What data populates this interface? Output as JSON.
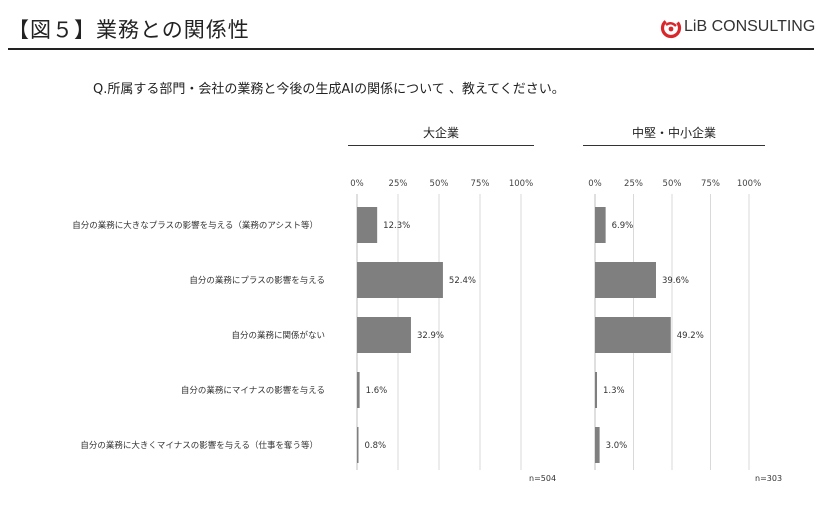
{
  "header": {
    "title": "【図５】業務との関係性",
    "brand": "LiB CONSULTING",
    "brand_icon": "lib-consulting-logo-icon"
  },
  "question": "Q.所属する部門・会社の業務と今後の生成AIの関係について 、教えてください。",
  "colors": {
    "bar": "#7f7f7f",
    "grid": "#d9d9d9",
    "axis": "#bfbfbf",
    "logo_red": "#d9262a"
  },
  "chart_data": [
    {
      "type": "bar",
      "orientation": "horizontal",
      "title": "大企業",
      "categories": [
        "自分の業務に大きなプラスの影響を与える（業務のアシスト等）",
        "自分の業務にプラスの影響を与える",
        "自分の業務に関係がない",
        "自分の業務にマイナスの影響を与える",
        "自分の業務に大きくマイナスの影響を与える（仕事を奪う等）"
      ],
      "values": [
        12.3,
        52.4,
        32.9,
        1.6,
        0.8
      ],
      "value_labels": [
        "12.3%",
        "52.4%",
        "32.9%",
        "1.6%",
        "0.8%"
      ],
      "xlim": [
        0,
        100
      ],
      "ticks": [
        "0%",
        "25%",
        "50%",
        "75%",
        "100%"
      ],
      "tick_values": [
        0,
        25,
        50,
        75,
        100
      ],
      "note": "n=504"
    },
    {
      "type": "bar",
      "orientation": "horizontal",
      "title": "中堅・中小企業",
      "categories": [
        "自分の業務に大きなプラスの影響を与える（業務のアシスト等）",
        "自分の業務にプラスの影響を与える",
        "自分の業務に関係がない",
        "自分の業務にマイナスの影響を与える",
        "自分の業務に大きくマイナスの影響を与える（仕事を奪う等）"
      ],
      "values": [
        6.9,
        39.6,
        49.2,
        1.3,
        3.0
      ],
      "value_labels": [
        "6.9%",
        "39.6%",
        "49.2%",
        "1.3%",
        "3.0%"
      ],
      "xlim": [
        0,
        100
      ],
      "ticks": [
        "0%",
        "25%",
        "50%",
        "75%",
        "100%"
      ],
      "tick_values": [
        0,
        25,
        50,
        75,
        100
      ],
      "note": "n=303"
    }
  ]
}
